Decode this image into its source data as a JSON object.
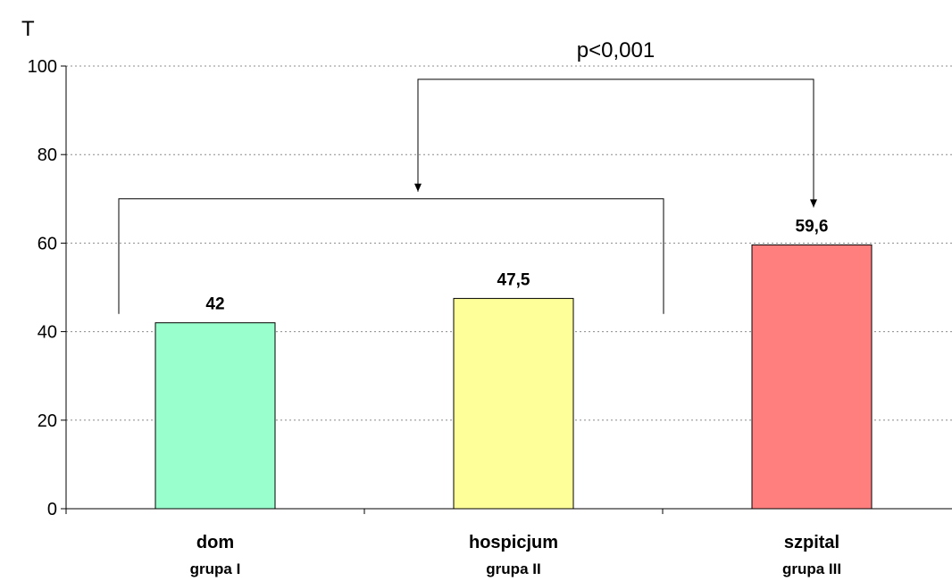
{
  "chart_data": {
    "type": "bar",
    "ylabel": "T",
    "ylim": [
      0,
      100
    ],
    "yticks": [
      0,
      20,
      40,
      60,
      80,
      100
    ],
    "grid": true,
    "categories": [
      {
        "name": "dom",
        "group": "grupa I"
      },
      {
        "name": "hospicjum",
        "group": "grupa II"
      },
      {
        "name": "szpital",
        "group": "grupa III"
      }
    ],
    "values": [
      42,
      47.5,
      59.6
    ],
    "value_labels": [
      "42",
      "47,5",
      "59,6"
    ],
    "colors": [
      "#99FFCC",
      "#FFFF99",
      "#FF7F7F"
    ],
    "annotation": {
      "text": "p<0,001",
      "compares": [
        "dom + hospicjum",
        "szpital"
      ]
    }
  }
}
